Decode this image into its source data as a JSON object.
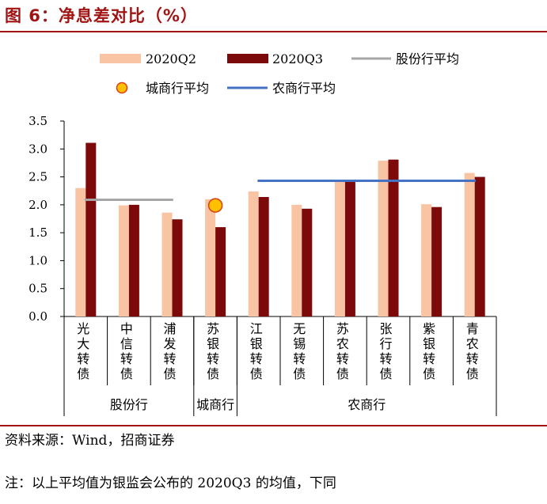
{
  "figure": {
    "title": "图 6：净息差对比（%）",
    "source": "资料来源：Wind，招商证券",
    "note": "注：以上平均值为银监会公布的 2020Q3 的均值，下同"
  },
  "colors": {
    "q2": "#f8c4a4",
    "q3": "#7d0a0a",
    "joint_stock_avg": "#a6a6a6",
    "city_avg_fill": "#ffc000",
    "city_avg_stroke": "#e03c14",
    "rural_avg": "#4472c4",
    "accent": "#a01414"
  },
  "chart_data": {
    "type": "bar",
    "categories": [
      "光大转债",
      "中信转债",
      "浦发转债",
      "苏银转债",
      "江银转债",
      "无锡转债",
      "苏农转债",
      "张行转债",
      "紫银转债",
      "青农转债"
    ],
    "category_lines": [
      [
        "光",
        "大",
        "转",
        "债"
      ],
      [
        "中",
        "信",
        "转",
        "债"
      ],
      [
        "浦",
        "发",
        "转",
        "债"
      ],
      [
        "苏",
        "银",
        "转",
        "债"
      ],
      [
        "江",
        "银",
        "转",
        "债"
      ],
      [
        "无",
        "锡",
        "转",
        "债"
      ],
      [
        "苏",
        "农",
        "转",
        "债"
      ],
      [
        "张",
        "行",
        "转",
        "债"
      ],
      [
        "紫",
        "银",
        "转",
        "债"
      ],
      [
        "青",
        "农",
        "转",
        "债"
      ]
    ],
    "series": [
      {
        "name": "2020Q2",
        "values": [
          2.3,
          1.99,
          1.86,
          2.1,
          2.24,
          2.0,
          2.44,
          2.79,
          2.01,
          2.57
        ]
      },
      {
        "name": "2020Q3",
        "values": [
          3.11,
          2.0,
          1.74,
          1.6,
          2.14,
          1.93,
          2.44,
          2.81,
          1.96,
          2.5
        ]
      }
    ],
    "averages": [
      {
        "name": "股份行平均",
        "kind": "line",
        "value": 2.09,
        "from": 0,
        "to": 2
      },
      {
        "name": "城商行平均",
        "kind": "point",
        "value": 1.99,
        "at": 3
      },
      {
        "name": "农商行平均",
        "kind": "line",
        "value": 2.43,
        "from": 4,
        "to": 9
      }
    ],
    "groups": [
      {
        "label": "股份行",
        "from": 0,
        "to": 2
      },
      {
        "label": "城商行",
        "from": 3,
        "to": 3
      },
      {
        "label": "农商行",
        "from": 4,
        "to": 9
      }
    ],
    "ylim": [
      0,
      3.5
    ],
    "yticks": [
      "0.0",
      "0.5",
      "1.0",
      "1.5",
      "2.0",
      "2.5",
      "3.0",
      "3.5"
    ],
    "grid": false,
    "legend_position": "top"
  }
}
